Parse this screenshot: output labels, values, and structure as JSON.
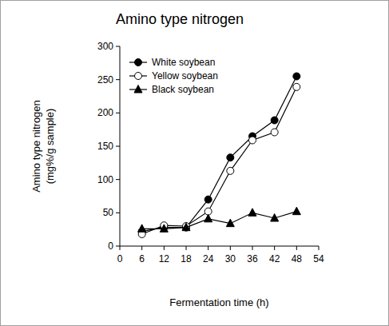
{
  "chart_data": {
    "type": "line",
    "title": "Amino type nitrogen",
    "x_label": "Fermentation time (h)",
    "y_label": [
      "Amino type nitrogen",
      "(mg%/g sample)"
    ],
    "x": [
      6,
      12,
      18,
      24,
      30,
      36,
      42,
      48
    ],
    "series": [
      {
        "name": "White soybean",
        "color": "#000000",
        "marker": "circle",
        "line_style": "solid",
        "values": [
          22,
          28,
          28,
          70,
          133,
          165,
          189,
          255
        ]
      },
      {
        "name": "Yellow soybean",
        "color": "#000000",
        "marker": "open-circle",
        "line_style": "solid",
        "values": [
          18,
          31,
          30,
          52,
          113,
          159,
          171,
          239
        ]
      },
      {
        "name": "Black soybean",
        "color": "#000000",
        "marker": "triangle",
        "line_style": "solid",
        "values": [
          26,
          26,
          28,
          41,
          34,
          50,
          42,
          52
        ]
      }
    ],
    "xlim": [
      0,
      54
    ],
    "xticks": [
      0,
      6,
      12,
      18,
      24,
      30,
      36,
      42,
      48,
      54
    ],
    "ylim": [
      0,
      300
    ],
    "yticks": [
      0,
      50,
      100,
      150,
      200,
      250,
      300
    ],
    "grid": false,
    "legend": "upper left"
  }
}
